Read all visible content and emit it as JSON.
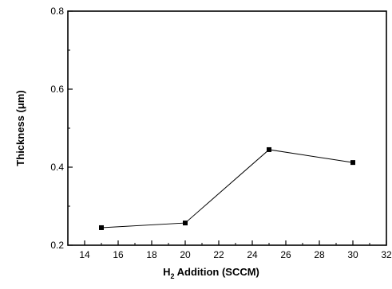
{
  "chart_data": {
    "type": "line",
    "x": [
      15,
      20,
      25,
      30
    ],
    "series": [
      {
        "values": [
          0.245,
          0.257,
          0.445,
          0.412
        ]
      }
    ],
    "xlabel_main": "H",
    "xlabel_sub": "2",
    "xlabel_rest": " Addition (SCCM)",
    "ylabel": "Thickness (μm)",
    "xlim": [
      13,
      32
    ],
    "ylim": [
      0.2,
      0.8
    ],
    "xticks": [
      14,
      16,
      18,
      20,
      22,
      24,
      26,
      28,
      30,
      32
    ],
    "yticks": [
      0.2,
      0.4,
      0.6,
      0.8
    ],
    "ytick_labels": [
      "0.2",
      "0.4",
      "0.6",
      "0.8"
    ],
    "grid": false,
    "marker": "square",
    "color": "#000000"
  }
}
